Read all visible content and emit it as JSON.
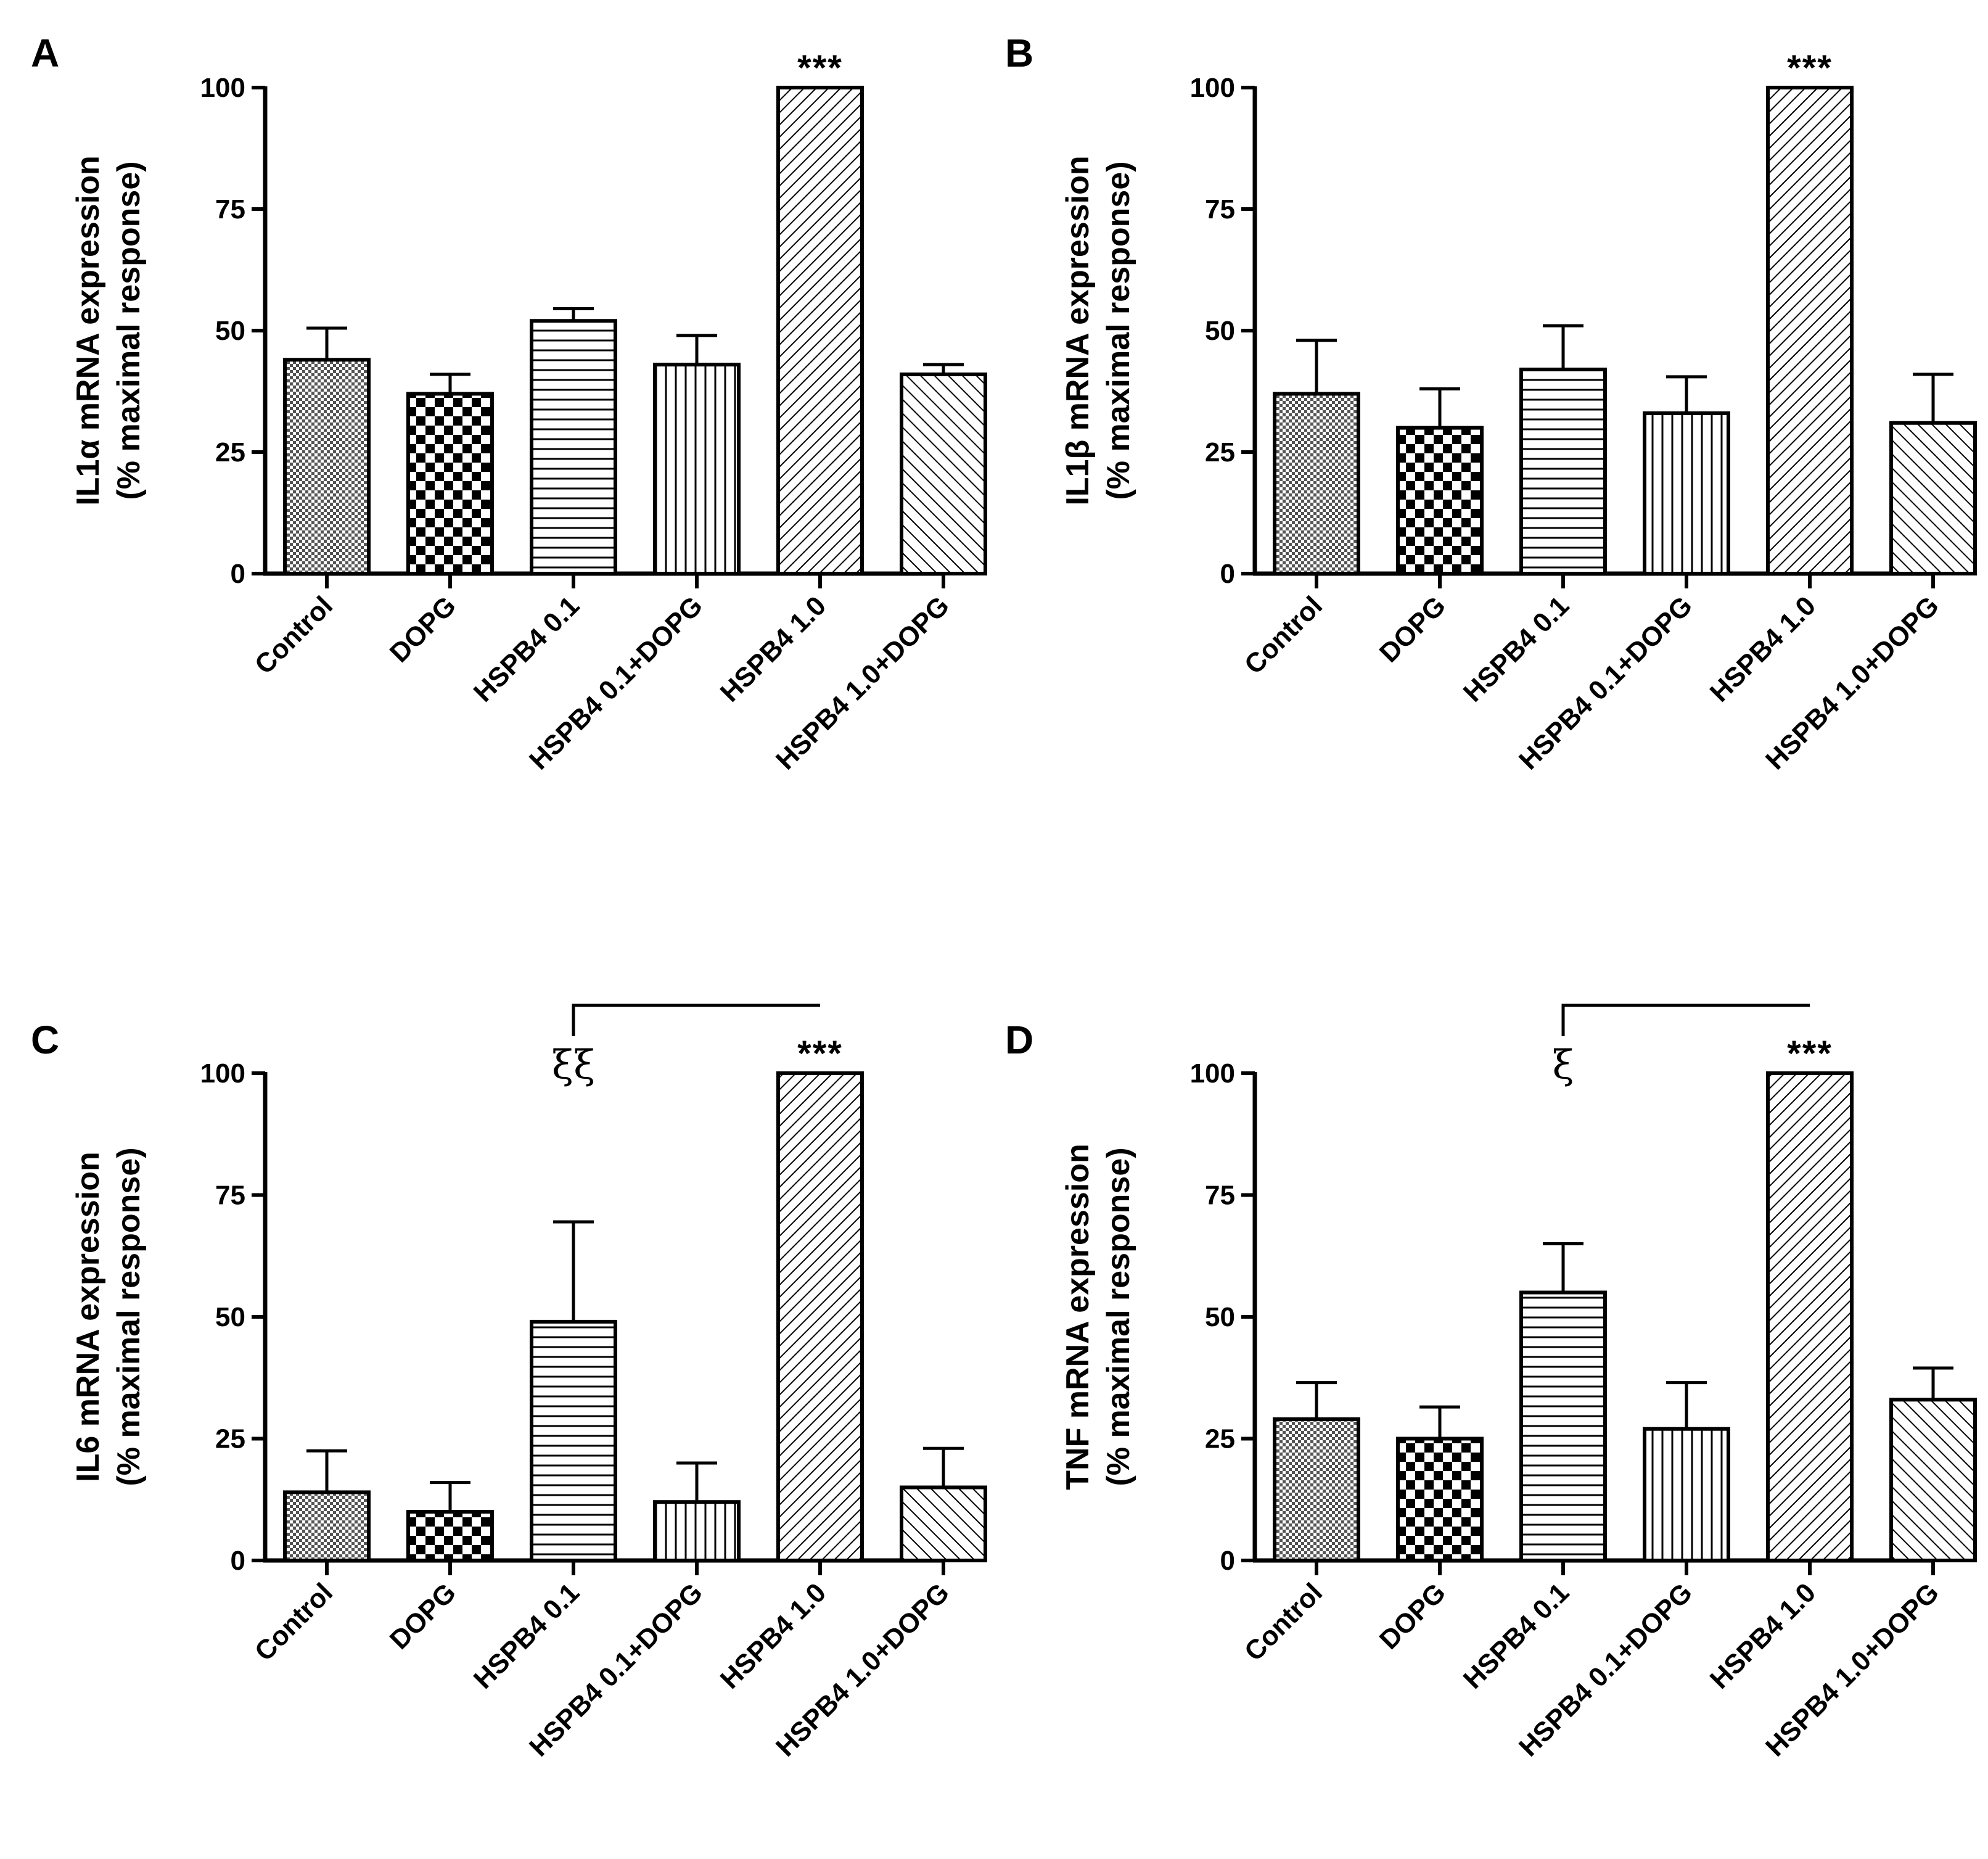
{
  "figure": {
    "categories": [
      "Control",
      "DOPG",
      "HSPB4 0.1",
      "HSPB4 0.1+DOPG",
      "HSPB4 1.0",
      "HSPB4 1.0+DOPG"
    ],
    "patterns": [
      "crosshatch",
      "checker",
      "horizontal",
      "vertical",
      "diagonal-up",
      "diagonal-down"
    ]
  },
  "chart_data": [
    {
      "type": "bar",
      "panel": "A",
      "ylabel_line1": "IL1α mRNA expression",
      "ylabel_line2": "(% maximal response)",
      "ylim": [
        0,
        100
      ],
      "yticks": [
        "0",
        "25",
        "50",
        "75",
        "100"
      ],
      "categories": [
        "Control",
        "DOPG",
        "HSPB4 0.1",
        "HSPB4 0.1+DOPG",
        "HSPB4 1.0",
        "HSPB4 1.0+DOPG"
      ],
      "values": [
        44,
        37,
        52,
        43,
        100,
        41
      ],
      "errors": [
        6.5,
        4,
        2.5,
        6,
        0,
        2
      ],
      "annotations": [
        {
          "text": "***",
          "category": "HSPB4 1.0"
        }
      ]
    },
    {
      "type": "bar",
      "panel": "B",
      "ylabel_line1": "IL1β mRNA expression",
      "ylabel_line2": "(% maximal response)",
      "ylim": [
        0,
        100
      ],
      "yticks": [
        "0",
        "25",
        "50",
        "75",
        "100"
      ],
      "categories": [
        "Control",
        "DOPG",
        "HSPB4 0.1",
        "HSPB4 0.1+DOPG",
        "HSPB4 1.0",
        "HSPB4 1.0+DOPG"
      ],
      "values": [
        37,
        30,
        42,
        33,
        100,
        31
      ],
      "errors": [
        11,
        8,
        9,
        7.5,
        0,
        10
      ],
      "annotations": [
        {
          "text": "***",
          "category": "HSPB4 1.0"
        }
      ]
    },
    {
      "type": "bar",
      "panel": "C",
      "ylabel_line1": "IL6 mRNA expression",
      "ylabel_line2": "(% maximal response)",
      "ylim": [
        0,
        100
      ],
      "yticks": [
        "0",
        "25",
        "50",
        "75",
        "100"
      ],
      "categories": [
        "Control",
        "DOPG",
        "HSPB4 0.1",
        "HSPB4 0.1+DOPG",
        "HSPB4 1.0",
        "HSPB4 1.0+DOPG"
      ],
      "values": [
        14,
        10,
        49,
        12,
        100,
        15
      ],
      "errors": [
        8.5,
        6,
        20.5,
        8,
        0,
        8
      ],
      "annotations": [
        {
          "text": "***",
          "category": "HSPB4 1.0"
        },
        {
          "text": "ξξ",
          "bracket_from": "HSPB4 0.1",
          "bracket_to": "HSPB4 1.0"
        }
      ]
    },
    {
      "type": "bar",
      "panel": "D",
      "ylabel_line1": "TNF mRNA expression",
      "ylabel_line2": "(% maximal response)",
      "ylim": [
        0,
        100
      ],
      "yticks": [
        "0",
        "25",
        "50",
        "75",
        "100"
      ],
      "categories": [
        "Control",
        "DOPG",
        "HSPB4 0.1",
        "HSPB4 0.1+DOPG",
        "HSPB4 1.0",
        "HSPB4 1.0+DOPG"
      ],
      "values": [
        29,
        25,
        55,
        27,
        100,
        33
      ],
      "errors": [
        7.5,
        6.5,
        10,
        9.5,
        0,
        6.5
      ],
      "annotations": [
        {
          "text": "***",
          "category": "HSPB4 1.0"
        },
        {
          "text": "ξ",
          "bracket_from": "HSPB4 0.1",
          "bracket_to": "HSPB4 1.0"
        }
      ]
    }
  ]
}
